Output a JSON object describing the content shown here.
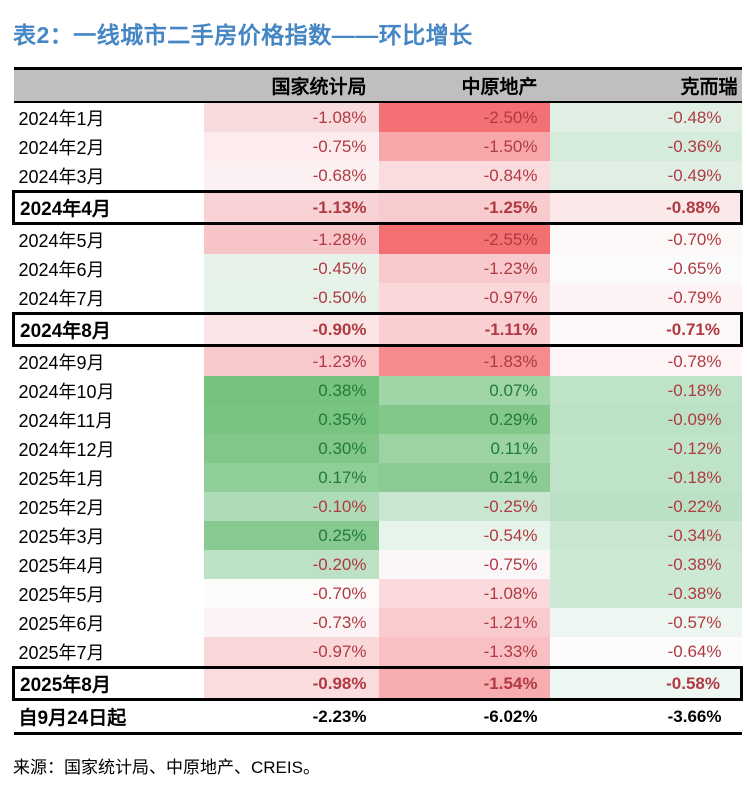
{
  "title": "表2：一线城市二手房价格指数——环比增长",
  "source_note": "来源：国家统计局、中原地产、CREIS。",
  "colors": {
    "title_blue": "#4586C4",
    "negative_text": "#B03A42",
    "positive_text": "#217A38",
    "footer_text": "#000000",
    "header_bg": "#BFBFBF"
  },
  "table": {
    "columns": [
      "",
      "国家统计局",
      "中原地产",
      "克而瑞"
    ],
    "rows": [
      {
        "label": "2024年1月",
        "highlight": false,
        "cells": [
          {
            "v": "-1.08%",
            "bg": "#F9DBDD"
          },
          {
            "v": "-2.50%",
            "bg": "#F37174"
          },
          {
            "v": "-0.48%",
            "bg": "#E0EFE4"
          }
        ]
      },
      {
        "label": "2024年2月",
        "highlight": false,
        "cells": [
          {
            "v": "-0.75%",
            "bg": "#FCECED"
          },
          {
            "v": "-1.50%",
            "bg": "#F7A7AA"
          },
          {
            "v": "-0.36%",
            "bg": "#D5EBDB"
          }
        ]
      },
      {
        "label": "2024年3月",
        "highlight": false,
        "cells": [
          {
            "v": "-0.68%",
            "bg": "#FCF1F2"
          },
          {
            "v": "-0.84%",
            "bg": "#FBDCDE"
          },
          {
            "v": "-0.49%",
            "bg": "#E0EFE4"
          }
        ]
      },
      {
        "label": "2024年4月",
        "highlight": true,
        "cells": [
          {
            "v": "-1.13%",
            "bg": "#F8D2D4"
          },
          {
            "v": "-1.25%",
            "bg": "#F8CCCF"
          },
          {
            "v": "-0.88%",
            "bg": "#FBE9EA"
          }
        ]
      },
      {
        "label": "2024年5月",
        "highlight": false,
        "cells": [
          {
            "v": "-1.28%",
            "bg": "#F7C5C8"
          },
          {
            "v": "-2.55%",
            "bg": "#F26F72"
          },
          {
            "v": "-0.70%",
            "bg": "#FDF8F8"
          }
        ]
      },
      {
        "label": "2024年6月",
        "highlight": false,
        "cells": [
          {
            "v": "-0.45%",
            "bg": "#E7F3EA"
          },
          {
            "v": "-1.23%",
            "bg": "#F9CACD"
          },
          {
            "v": "-0.65%",
            "bg": "#FAFCFB"
          }
        ]
      },
      {
        "label": "2024年7月",
        "highlight": false,
        "cells": [
          {
            "v": "-0.50%",
            "bg": "#E4F2E8"
          },
          {
            "v": "-0.97%",
            "bg": "#FAD7D9"
          },
          {
            "v": "-0.79%",
            "bg": "#FEF3F4"
          }
        ]
      },
      {
        "label": "2024年8月",
        "highlight": true,
        "cells": [
          {
            "v": "-0.90%",
            "bg": "#FBE4E6"
          },
          {
            "v": "-1.11%",
            "bg": "#F9CFD2"
          },
          {
            "v": "-0.71%",
            "bg": "#FCF8F8"
          }
        ]
      },
      {
        "label": "2024年9月",
        "highlight": false,
        "cells": [
          {
            "v": "-1.23%",
            "bg": "#F8C8CB"
          },
          {
            "v": "-1.83%",
            "bg": "#F58B8E"
          },
          {
            "v": "-0.78%",
            "bg": "#FEF4F5"
          }
        ]
      },
      {
        "label": "2024年10月",
        "highlight": false,
        "cells": [
          {
            "v": "0.38%",
            "bg": "#77C37E"
          },
          {
            "v": "0.07%",
            "bg": "#A0D5A8"
          },
          {
            "v": "-0.18%",
            "bg": "#BFE3C7"
          }
        ]
      },
      {
        "label": "2024年11月",
        "highlight": false,
        "cells": [
          {
            "v": "0.35%",
            "bg": "#7AC481"
          },
          {
            "v": "0.29%",
            "bg": "#83C88A"
          },
          {
            "v": "-0.09%",
            "bg": "#BCE2C5"
          }
        ]
      },
      {
        "label": "2024年12月",
        "highlight": false,
        "cells": [
          {
            "v": "0.30%",
            "bg": "#82C789"
          },
          {
            "v": "0.11%",
            "bg": "#9BD3A3"
          },
          {
            "v": "-0.12%",
            "bg": "#C0E4C8"
          }
        ]
      },
      {
        "label": "2025年1月",
        "highlight": false,
        "cells": [
          {
            "v": "0.17%",
            "bg": "#90CE98"
          },
          {
            "v": "0.21%",
            "bg": "#8BCB93"
          },
          {
            "v": "-0.18%",
            "bg": "#BFE3C7"
          }
        ]
      },
      {
        "label": "2025年2月",
        "highlight": false,
        "cells": [
          {
            "v": "-0.10%",
            "bg": "#AFDCB8"
          },
          {
            "v": "-0.25%",
            "bg": "#C9E7D0"
          },
          {
            "v": "-0.22%",
            "bg": "#BAE1C3"
          }
        ]
      },
      {
        "label": "2025年3月",
        "highlight": false,
        "cells": [
          {
            "v": "0.25%",
            "bg": "#87C98F"
          },
          {
            "v": "-0.54%",
            "bg": "#E7F4EB"
          },
          {
            "v": "-0.34%",
            "bg": "#C9E7D0"
          }
        ]
      },
      {
        "label": "2025年4月",
        "highlight": false,
        "cells": [
          {
            "v": "-0.20%",
            "bg": "#BCE1C4"
          },
          {
            "v": "-0.75%",
            "bg": "#FBF6F7"
          },
          {
            "v": "-0.38%",
            "bg": "#CCE9D3"
          }
        ]
      },
      {
        "label": "2025年5月",
        "highlight": false,
        "cells": [
          {
            "v": "-0.70%",
            "bg": "#FDFAFA"
          },
          {
            "v": "-1.08%",
            "bg": "#FADADC"
          },
          {
            "v": "-0.38%",
            "bg": "#CCE9D3"
          }
        ]
      },
      {
        "label": "2025年6月",
        "highlight": false,
        "cells": [
          {
            "v": "-0.73%",
            "bg": "#FCF4F4"
          },
          {
            "v": "-1.21%",
            "bg": "#F9CBCE"
          },
          {
            "v": "-0.57%",
            "bg": "#EDF6F0"
          }
        ]
      },
      {
        "label": "2025年7月",
        "highlight": false,
        "cells": [
          {
            "v": "-0.97%",
            "bg": "#FAD8DA"
          },
          {
            "v": "-1.33%",
            "bg": "#F8C0C3"
          },
          {
            "v": "-0.64%",
            "bg": "#FBFCFB"
          }
        ]
      },
      {
        "label": "2025年8月",
        "highlight": true,
        "cells": [
          {
            "v": "-0.98%",
            "bg": "#FADCDE"
          },
          {
            "v": "-1.54%",
            "bg": "#F7ACAF"
          },
          {
            "v": "-0.58%",
            "bg": "#EEF6F1"
          }
        ]
      }
    ],
    "footer": {
      "label": "自9月24日起",
      "values": [
        "-2.23%",
        "-6.02%",
        "-3.66%"
      ]
    }
  }
}
